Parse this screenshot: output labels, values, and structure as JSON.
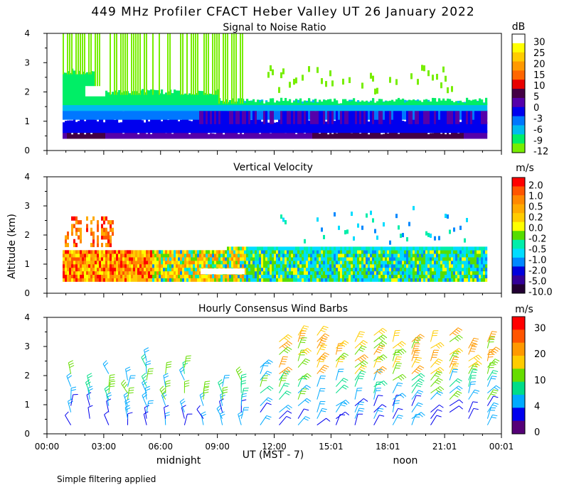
{
  "chart_data": {
    "title": "449 MHz Profiler CFACT Heber Valley UT 26 January 2022",
    "ylabel": "Altitude (km)",
    "xlabel": "UT  (MST - 7)",
    "x_ticks": [
      "00:00",
      "03:00",
      "06:00",
      "09:00",
      "12:00",
      "15:01",
      "18:01",
      "21:01",
      "00:01"
    ],
    "local_labels": [
      {
        "text": "midnight",
        "hour": 7
      },
      {
        "text": "noon",
        "hour": 19
      }
    ],
    "footnote": "Simple filtering applied",
    "panels": [
      {
        "type": "heatmap",
        "title": "Signal to Noise Ratio",
        "units": "dB",
        "ylim": [
          0,
          4
        ],
        "y_ticks": [
          "0",
          "1",
          "2",
          "3",
          "4"
        ],
        "colorbar": {
          "labels": [
            "30",
            "25",
            "20",
            "15",
            "10",
            "5",
            "0",
            "-3",
            "-6",
            "-9",
            "-12"
          ],
          "colors": [
            "#ffffff",
            "#ffff00",
            "#ffcc00",
            "#ff9900",
            "#ff6600",
            "#e80000",
            "#440044",
            "#5500aa",
            "#0000ee",
            "#0077ff",
            "#00bbee",
            "#00ee66",
            "#77ee00"
          ]
        }
      },
      {
        "type": "heatmap",
        "title": "Vertical Velocity",
        "units": "m/s",
        "ylim": [
          0,
          4
        ],
        "y_ticks": [
          "0",
          "1",
          "2",
          "3",
          "4"
        ],
        "colorbar": {
          "labels": [
            "2.0",
            "1.0",
            "0.5",
            "0.2",
            "0.0",
            "-0.2",
            "-0.5",
            "-1.0",
            "-2.0",
            "-5.0",
            "-10.0"
          ],
          "colors": [
            "#ff0000",
            "#ff5500",
            "#ff8800",
            "#ffaa00",
            "#ffcc00",
            "#ffff00",
            "#55dd00",
            "#00eeaa",
            "#00ddff",
            "#0088ff",
            "#0000dd",
            "#330099",
            "#220033"
          ]
        }
      },
      {
        "type": "wind_barbs",
        "title": "Hourly Consensus Wind Barbs",
        "units": "m/s",
        "ylim": [
          0,
          4
        ],
        "y_ticks": [
          "0",
          "1",
          "2",
          "3",
          "4"
        ],
        "colorbar": {
          "labels": [
            "30",
            "20",
            "10",
            "4",
            "0"
          ],
          "colors": [
            "#ff0000",
            "#ff5500",
            "#ff9900",
            "#ffcc00",
            "#66dd00",
            "#00dd88",
            "#00aaff",
            "#0000ee",
            "#550077"
          ]
        }
      }
    ]
  }
}
